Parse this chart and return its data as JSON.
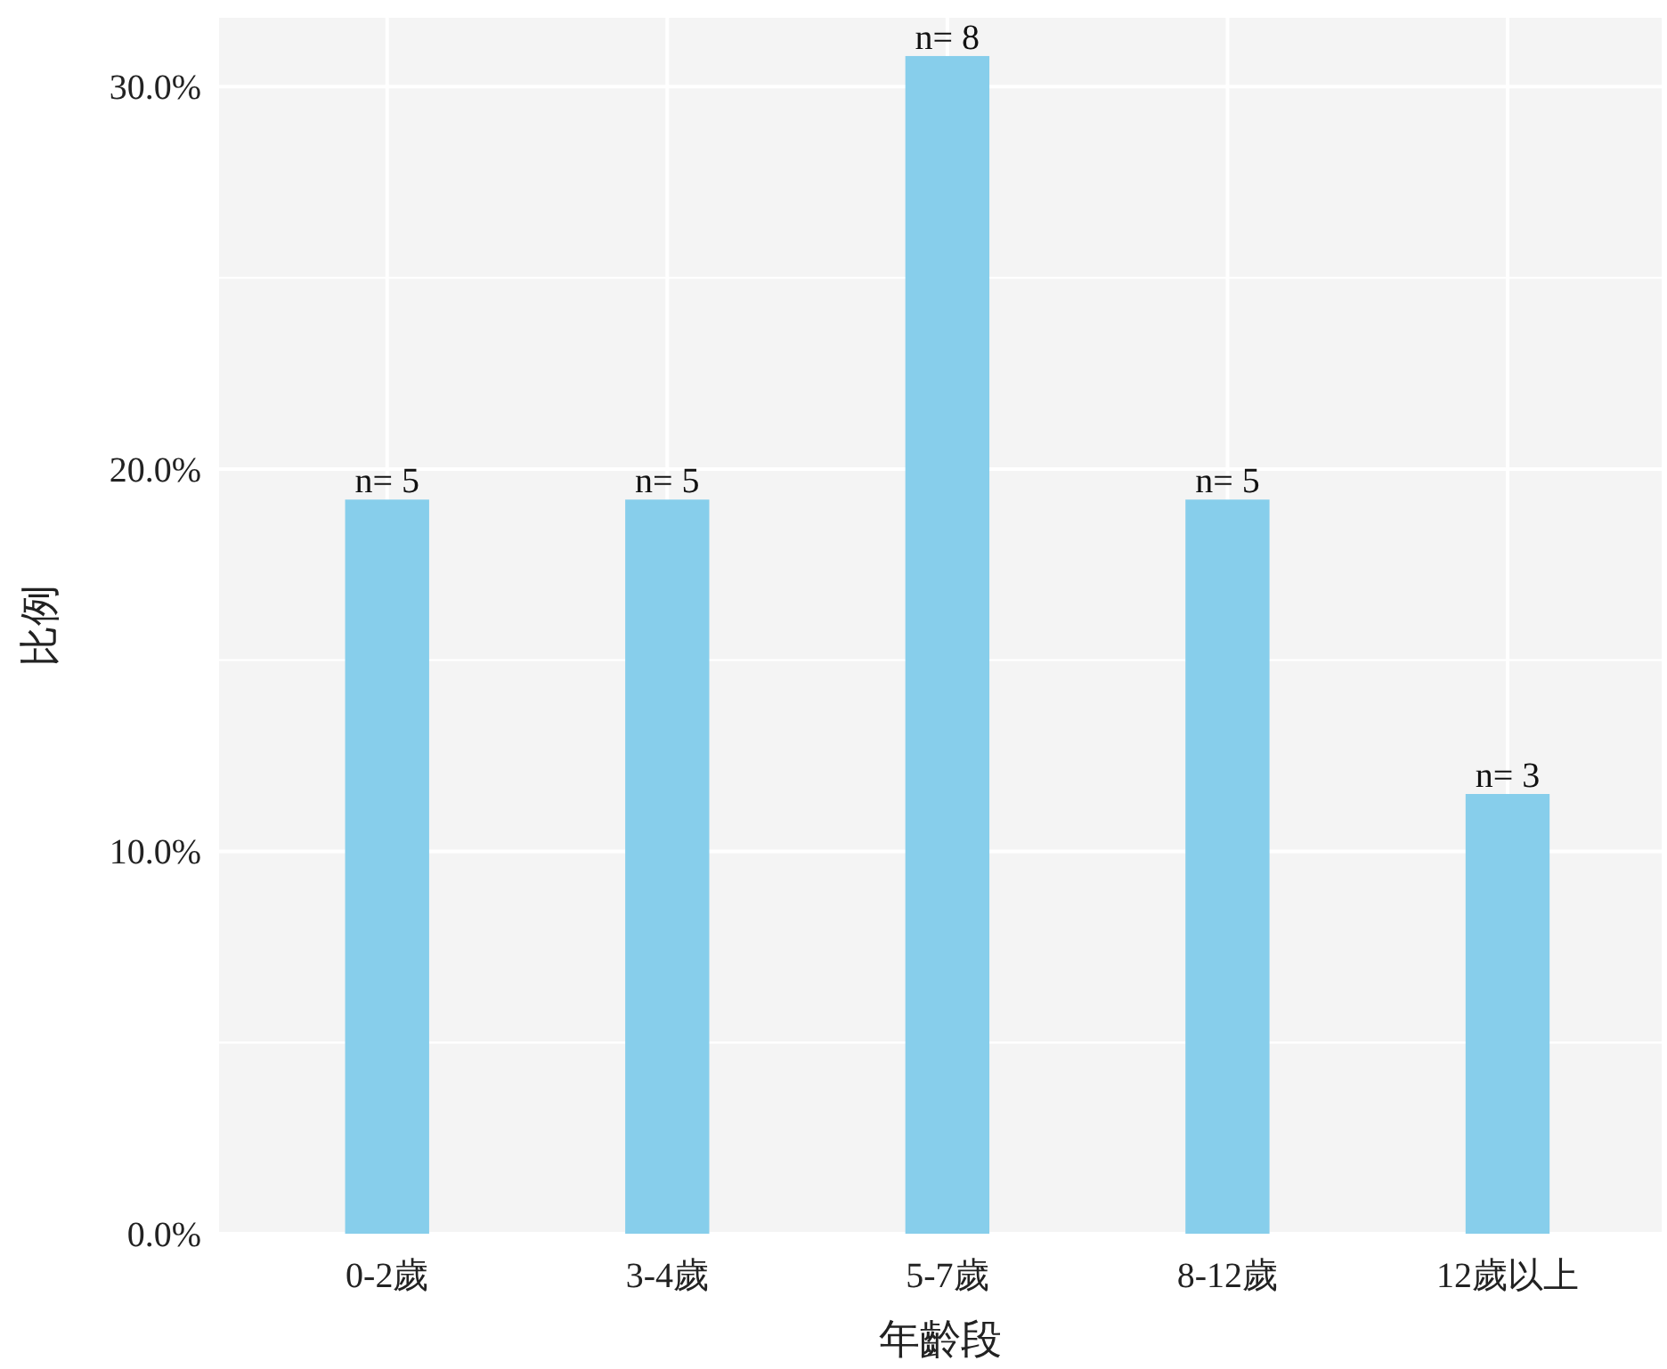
{
  "chart_data": {
    "type": "bar",
    "xlabel": "年齡段",
    "ylabel": "比例",
    "categories": [
      "0-2歲",
      "3-4歲",
      "5-7歲",
      "8-12歲",
      "12歲以上"
    ],
    "values": [
      19.2,
      19.2,
      30.8,
      19.2,
      11.5
    ],
    "annotations": [
      {
        "text": "n= 5",
        "x": "0-2歲",
        "y": 19.2
      },
      {
        "text": "n= 5",
        "x": "3-4歲",
        "y": 19.2
      },
      {
        "text": "n= 8",
        "x": "5-7歲",
        "y": 30.8
      },
      {
        "text": "n= 5",
        "x": "8-12歲",
        "y": 19.2
      },
      {
        "text": "n= 3",
        "x": "12歲以上",
        "y": 11.5
      }
    ],
    "color": "#87ceeb",
    "ylim": [
      0,
      31.8
    ],
    "yticks": [
      {
        "value": 0,
        "label": "0.0%"
      },
      {
        "value": 5,
        "label": null
      },
      {
        "value": 10,
        "label": "10.0%"
      },
      {
        "value": 15,
        "label": null
      },
      {
        "value": 20,
        "label": "20.0%"
      },
      {
        "value": 25,
        "label": null
      },
      {
        "value": 30,
        "label": "30.0%"
      }
    ],
    "grid": true
  }
}
